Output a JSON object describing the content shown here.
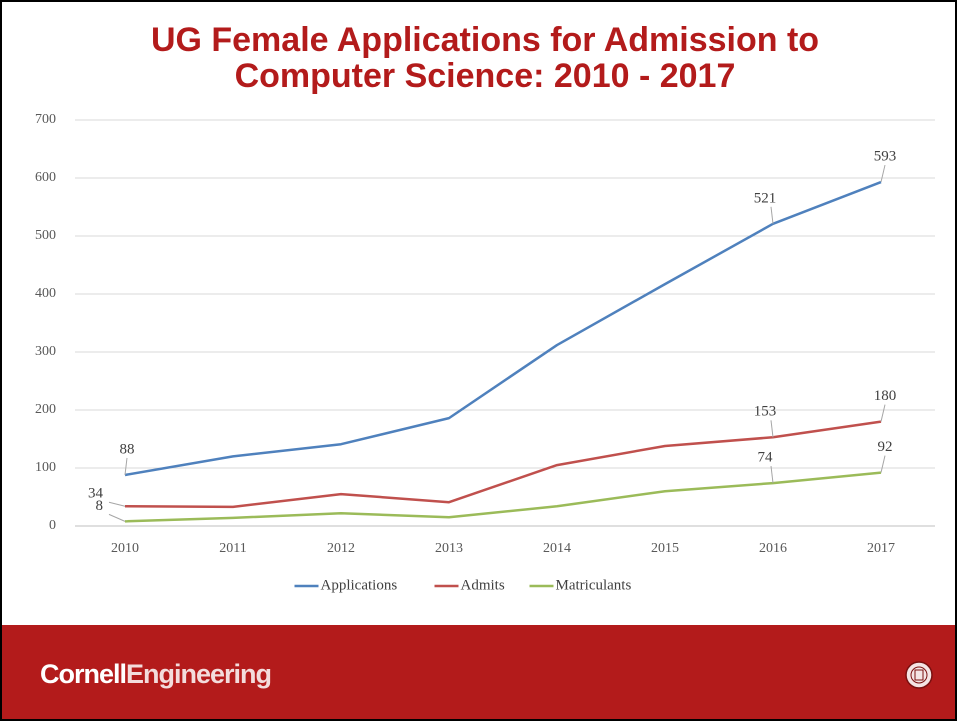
{
  "chart_data": {
    "type": "line",
    "title": [
      "UG Female Applications for Admission to",
      "Computer Science: 2010 - 2017"
    ],
    "categories": [
      "2010",
      "2011",
      "2012",
      "2013",
      "2014",
      "2015",
      "2016",
      "2017"
    ],
    "series": [
      {
        "name": "Applications",
        "color": "#4f81bd",
        "values": [
          88,
          120,
          141,
          186,
          312,
          417,
          521,
          593
        ]
      },
      {
        "name": "Admits",
        "color": "#c0504d",
        "values": [
          34,
          33,
          55,
          41,
          105,
          138,
          153,
          180
        ]
      },
      {
        "name": "Matriculants",
        "color": "#9bbb59",
        "values": [
          8,
          14,
          22,
          15,
          34,
          60,
          74,
          92
        ]
      }
    ],
    "data_labels": [
      0,
      6,
      7
    ],
    "ylim": [
      0,
      700
    ],
    "yticks": [
      0,
      100,
      200,
      300,
      400,
      500,
      600,
      700
    ],
    "grid": true,
    "legend": "bottom"
  },
  "footer": {
    "brand": [
      "Cornell",
      "Engineering"
    ]
  }
}
